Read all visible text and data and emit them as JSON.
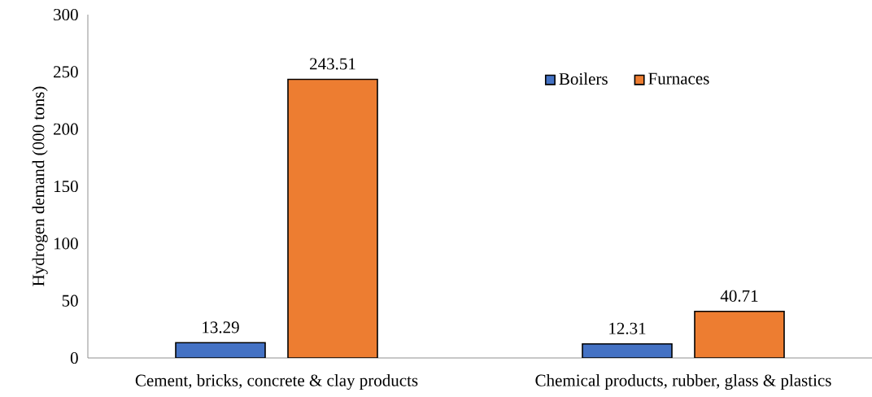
{
  "chart_data": {
    "type": "bar",
    "ylabel": "Hydrogen demand (000 tons)",
    "categories": [
      "Cement, bricks, concrete & clay products",
      "Chemical products, rubber, glass & plastics"
    ],
    "series": [
      {
        "name": "Boilers",
        "color": "#4472c4",
        "values": [
          13.29,
          12.31
        ]
      },
      {
        "name": "Furnaces",
        "color": "#ed7d31",
        "values": [
          243.51,
          40.71
        ]
      }
    ],
    "ylim": [
      0,
      300
    ],
    "yticks": [
      0,
      50,
      100,
      150,
      200,
      250,
      300
    ],
    "data_labels": true,
    "legend": "top right",
    "grid": false
  }
}
